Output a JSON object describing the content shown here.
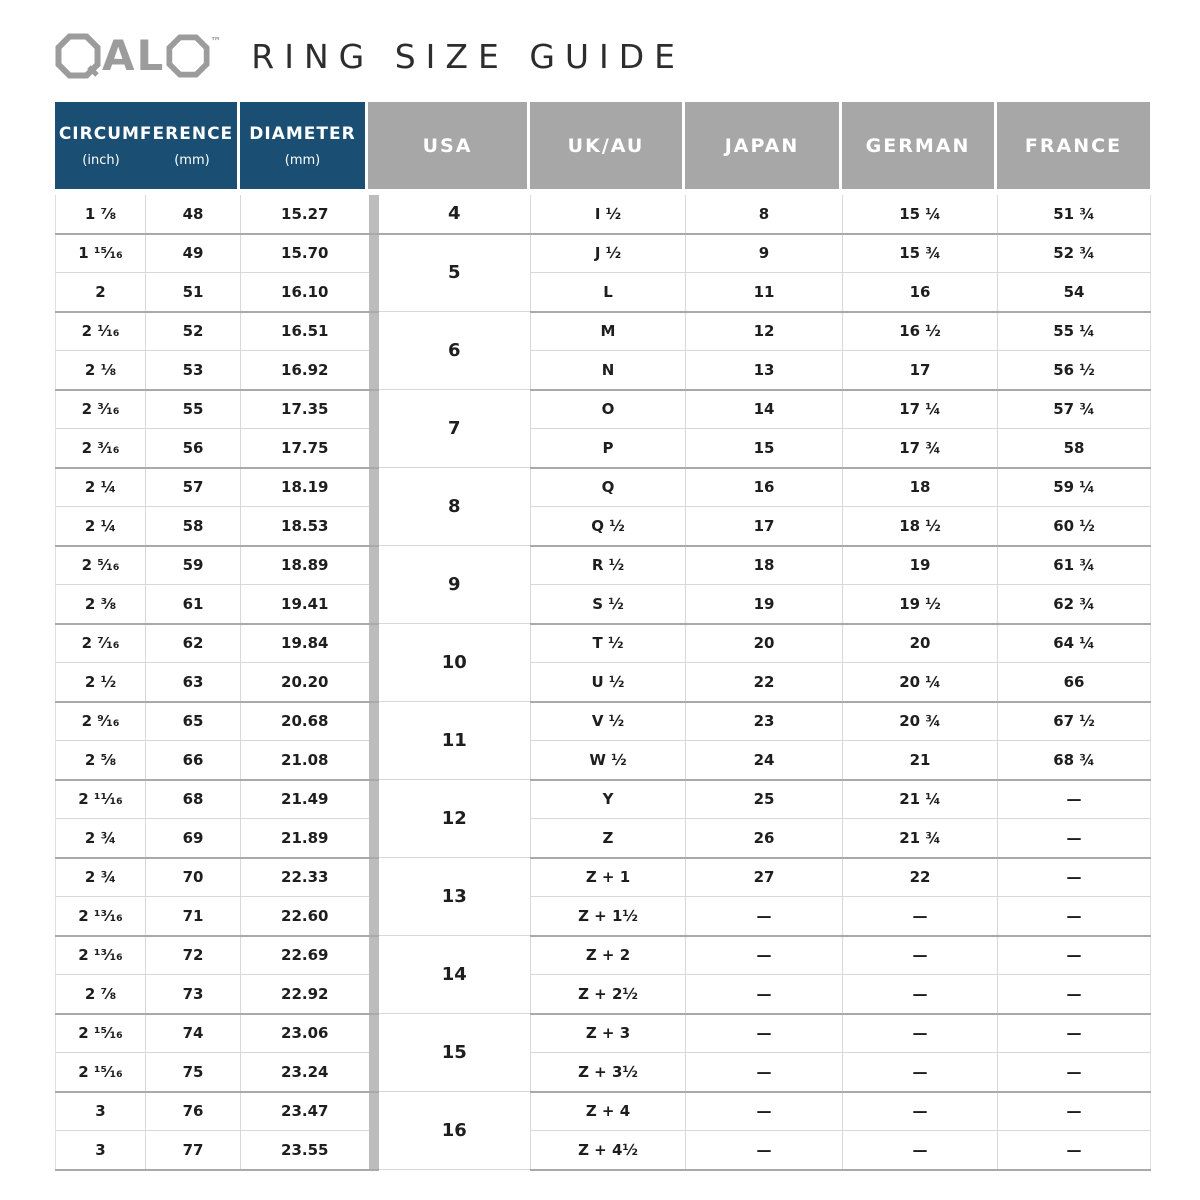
{
  "title": {
    "brand": "QALO",
    "brand_letters": "AL",
    "trademark": "™",
    "heading": "RING SIZE GUIDE"
  },
  "colors": {
    "header_blue": "#1a4e72",
    "header_gray": "#a7a7a7",
    "brand_gray": "#9c9c9c",
    "heading_text": "#2d2d2d",
    "body_text": "#1e1e1e",
    "thin_line": "#d8d8d8",
    "group_line": "#a9a9a9",
    "divider_gray": "#bcbcbc"
  },
  "table": {
    "headers": {
      "circumference": "CIRCUMFERENCE",
      "circumference_unit_inch": "(inch)",
      "circumference_unit_mm": "(mm)",
      "diameter": "DIAMETER",
      "diameter_unit": "(mm)",
      "usa": "USA",
      "uk_au": "UK/AU",
      "japan": "JAPAN",
      "german": "GERMAN",
      "france": "FRANCE"
    },
    "groups": [
      {
        "usa": "4",
        "rows": [
          {
            "in": "1 ⅞",
            "mm": "48",
            "dia": "15.27",
            "uk": "I ½",
            "jp": "8",
            "de": "15 ¼",
            "fr": "51 ¾"
          }
        ]
      },
      {
        "usa": "5",
        "rows": [
          {
            "in": "1 ¹⁵⁄₁₆",
            "mm": "49",
            "dia": "15.70",
            "uk": "J ½",
            "jp": "9",
            "de": "15 ¾",
            "fr": "52 ¾"
          },
          {
            "in": "2",
            "mm": "51",
            "dia": "16.10",
            "uk": "L",
            "jp": "11",
            "de": "16",
            "fr": "54"
          }
        ]
      },
      {
        "usa": "6",
        "rows": [
          {
            "in": "2 ¹⁄₁₆",
            "mm": "52",
            "dia": "16.51",
            "uk": "M",
            "jp": "12",
            "de": "16 ½",
            "fr": "55 ¼"
          },
          {
            "in": "2 ⅛",
            "mm": "53",
            "dia": "16.92",
            "uk": "N",
            "jp": "13",
            "de": "17",
            "fr": "56 ½"
          }
        ]
      },
      {
        "usa": "7",
        "rows": [
          {
            "in": "2 ³⁄₁₆",
            "mm": "55",
            "dia": "17.35",
            "uk": "O",
            "jp": "14",
            "de": "17 ¼",
            "fr": "57 ¾"
          },
          {
            "in": "2 ³⁄₁₆",
            "mm": "56",
            "dia": "17.75",
            "uk": "P",
            "jp": "15",
            "de": "17 ¾",
            "fr": "58"
          }
        ]
      },
      {
        "usa": "8",
        "rows": [
          {
            "in": "2 ¼",
            "mm": "57",
            "dia": "18.19",
            "uk": "Q",
            "jp": "16",
            "de": "18",
            "fr": "59 ¼"
          },
          {
            "in": "2 ¼",
            "mm": "58",
            "dia": "18.53",
            "uk": "Q ½",
            "jp": "17",
            "de": "18 ½",
            "fr": "60 ½"
          }
        ]
      },
      {
        "usa": "9",
        "rows": [
          {
            "in": "2 ⁵⁄₁₆",
            "mm": "59",
            "dia": "18.89",
            "uk": "R ½",
            "jp": "18",
            "de": "19",
            "fr": "61 ¾"
          },
          {
            "in": "2 ⅜",
            "mm": "61",
            "dia": "19.41",
            "uk": "S ½",
            "jp": "19",
            "de": "19 ½",
            "fr": "62 ¾"
          }
        ]
      },
      {
        "usa": "10",
        "rows": [
          {
            "in": "2 ⁷⁄₁₆",
            "mm": "62",
            "dia": "19.84",
            "uk": "T ½",
            "jp": "20",
            "de": "20",
            "fr": "64 ¼"
          },
          {
            "in": "2 ½",
            "mm": "63",
            "dia": "20.20",
            "uk": "U ½",
            "jp": "22",
            "de": "20 ¼",
            "fr": "66"
          }
        ]
      },
      {
        "usa": "11",
        "rows": [
          {
            "in": "2 ⁹⁄₁₆",
            "mm": "65",
            "dia": "20.68",
            "uk": "V ½",
            "jp": "23",
            "de": "20 ¾",
            "fr": "67 ½"
          },
          {
            "in": "2 ⅝",
            "mm": "66",
            "dia": "21.08",
            "uk": "W ½",
            "jp": "24",
            "de": "21",
            "fr": "68 ¾"
          }
        ]
      },
      {
        "usa": "12",
        "rows": [
          {
            "in": "2 ¹¹⁄₁₆",
            "mm": "68",
            "dia": "21.49",
            "uk": "Y",
            "jp": "25",
            "de": "21 ¼",
            "fr": "—"
          },
          {
            "in": "2 ¾",
            "mm": "69",
            "dia": "21.89",
            "uk": "Z",
            "jp": "26",
            "de": "21 ¾",
            "fr": "—"
          }
        ]
      },
      {
        "usa": "13",
        "rows": [
          {
            "in": "2 ¾",
            "mm": "70",
            "dia": "22.33",
            "uk": "Z + 1",
            "jp": "27",
            "de": "22",
            "fr": "—"
          },
          {
            "in": "2 ¹³⁄₁₆",
            "mm": "71",
            "dia": "22.60",
            "uk": "Z + 1½",
            "jp": "—",
            "de": "—",
            "fr": "—"
          }
        ]
      },
      {
        "usa": "14",
        "rows": [
          {
            "in": "2 ¹³⁄₁₆",
            "mm": "72",
            "dia": "22.69",
            "uk": "Z + 2",
            "jp": "—",
            "de": "—",
            "fr": "—"
          },
          {
            "in": "2 ⅞",
            "mm": "73",
            "dia": "22.92",
            "uk": "Z + 2½",
            "jp": "—",
            "de": "—",
            "fr": "—"
          }
        ]
      },
      {
        "usa": "15",
        "rows": [
          {
            "in": "2 ¹⁵⁄₁₆",
            "mm": "74",
            "dia": "23.06",
            "uk": "Z + 3",
            "jp": "—",
            "de": "—",
            "fr": "—"
          },
          {
            "in": "2 ¹⁵⁄₁₆",
            "mm": "75",
            "dia": "23.24",
            "uk": "Z + 3½",
            "jp": "—",
            "de": "—",
            "fr": "—"
          }
        ]
      },
      {
        "usa": "16",
        "rows": [
          {
            "in": "3",
            "mm": "76",
            "dia": "23.47",
            "uk": "Z + 4",
            "jp": "—",
            "de": "—",
            "fr": "—"
          },
          {
            "in": "3",
            "mm": "77",
            "dia": "23.55",
            "uk": "Z + 4½",
            "jp": "—",
            "de": "—",
            "fr": "—"
          }
        ]
      }
    ]
  }
}
